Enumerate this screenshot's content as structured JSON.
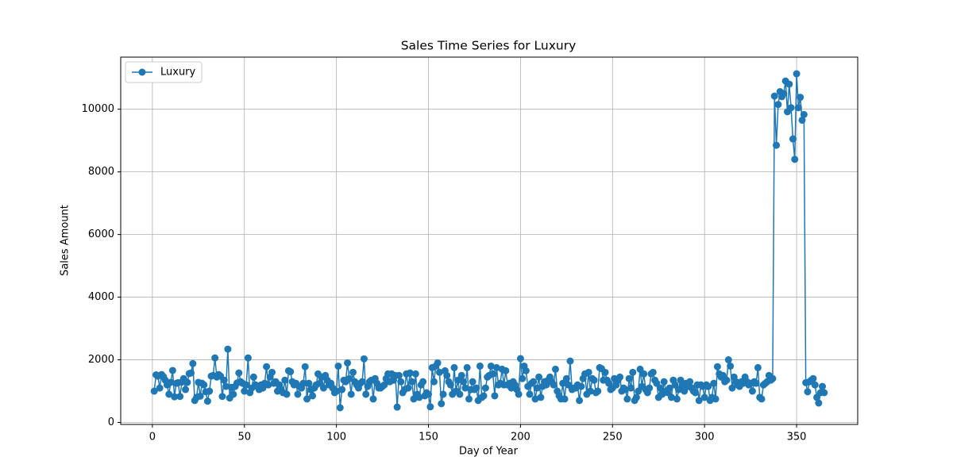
{
  "chart_data": {
    "type": "line",
    "title": "Sales Time Series for Luxury",
    "x_label": "Day of Year",
    "y_label": "Sales Amount",
    "x": [
      1,
      2,
      3,
      4,
      5,
      6,
      7,
      8,
      9,
      10,
      11,
      12,
      13,
      14,
      15,
      16,
      17,
      18,
      19,
      20,
      21,
      22,
      23,
      24,
      25,
      26,
      27,
      28,
      29,
      30,
      31,
      32,
      33,
      34,
      35,
      36,
      37,
      38,
      39,
      40,
      41,
      42,
      43,
      44,
      45,
      46,
      47,
      48,
      49,
      50,
      51,
      52,
      53,
      54,
      55,
      56,
      57,
      58,
      59,
      60,
      61,
      62,
      63,
      64,
      65,
      66,
      67,
      68,
      69,
      70,
      71,
      72,
      73,
      74,
      75,
      76,
      77,
      78,
      79,
      80,
      81,
      82,
      83,
      84,
      85,
      86,
      87,
      88,
      89,
      90,
      91,
      92,
      93,
      94,
      95,
      96,
      97,
      98,
      99,
      100,
      101,
      102,
      103,
      104,
      105,
      106,
      107,
      108,
      109,
      110,
      111,
      112,
      113,
      114,
      115,
      116,
      117,
      118,
      119,
      120,
      121,
      122,
      123,
      124,
      125,
      126,
      127,
      128,
      129,
      130,
      131,
      132,
      133,
      134,
      135,
      136,
      137,
      138,
      139,
      140,
      141,
      142,
      143,
      144,
      145,
      146,
      147,
      148,
      149,
      150,
      151,
      152,
      153,
      154,
      155,
      156,
      157,
      158,
      159,
      160,
      161,
      162,
      163,
      164,
      165,
      166,
      167,
      168,
      169,
      170,
      171,
      172,
      173,
      174,
      175,
      176,
      177,
      178,
      179,
      180,
      181,
      182,
      183,
      184,
      185,
      186,
      187,
      188,
      189,
      190,
      191,
      192,
      193,
      194,
      195,
      196,
      197,
      198,
      199,
      200,
      201,
      202,
      203,
      204,
      205,
      206,
      207,
      208,
      209,
      210,
      211,
      212,
      213,
      214,
      215,
      216,
      217,
      218,
      219,
      220,
      221,
      222,
      223,
      224,
      225,
      226,
      227,
      228,
      229,
      230,
      231,
      232,
      233,
      234,
      235,
      236,
      237,
      238,
      239,
      240,
      241,
      242,
      243,
      244,
      245,
      246,
      247,
      248,
      249,
      250,
      251,
      252,
      253,
      254,
      255,
      256,
      257,
      258,
      259,
      260,
      261,
      262,
      263,
      264,
      265,
      266,
      267,
      268,
      269,
      270,
      271,
      272,
      273,
      274,
      275,
      276,
      277,
      278,
      279,
      280,
      281,
      282,
      283,
      284,
      285,
      286,
      287,
      288,
      289,
      290,
      291,
      292,
      293,
      294,
      295,
      296,
      297,
      298,
      299,
      300,
      301,
      302,
      303,
      304,
      305,
      306,
      307,
      308,
      309,
      310,
      311,
      312,
      313,
      314,
      315,
      316,
      317,
      318,
      319,
      320,
      321,
      322,
      323,
      324,
      325,
      326,
      327,
      328,
      329,
      330,
      331,
      332,
      333,
      334,
      335,
      336,
      337,
      338,
      339,
      340,
      341,
      342,
      343,
      344,
      345,
      346,
      347,
      348,
      349,
      350,
      351,
      352,
      353,
      354,
      355,
      356,
      357,
      358,
      359,
      360,
      361,
      362,
      363,
      364,
      365
    ],
    "series": [
      {
        "name": "Luxury",
        "color": "#1f77b4",
        "values": [
          1000,
          1520,
          1480,
          1100,
          1530,
          1460,
          1350,
          1200,
          900,
          1280,
          1660,
          820,
          1250,
          1270,
          830,
          1290,
          1400,
          1050,
          1280,
          1560,
          1580,
          1880,
          700,
          800,
          1280,
          840,
          1250,
          1200,
          980,
          680,
          1000,
          1480,
          1500,
          2060,
          1450,
          1530,
          1480,
          830,
          1350,
          1150,
          2340,
          780,
          1120,
          900,
          1150,
          1260,
          1580,
          1300,
          1250,
          1000,
          1200,
          2060,
          950,
          1100,
          1450,
          1200,
          1150,
          1050,
          1200,
          1100,
          1250,
          1780,
          1200,
          1450,
          1600,
          1250,
          1300,
          1000,
          1200,
          1050,
          950,
          1350,
          900,
          1650,
          1620,
          1300,
          1200,
          1250,
          900,
          1150,
          1100,
          1250,
          1780,
          750,
          1250,
          1050,
          850,
          1100,
          1200,
          1550,
          1250,
          1450,
          1100,
          1500,
          1350,
          1200,
          1250,
          1100,
          950,
          1000,
          1800,
          470,
          1050,
          1350,
          1300,
          1900,
          1400,
          900,
          1600,
          1300,
          1200,
          1100,
          1250,
          1300,
          2030,
          900,
          1150,
          1300,
          1350,
          750,
          1400,
          1250,
          1100,
          1100,
          1150,
          1200,
          1400,
          1550,
          1300,
          1550,
          1350,
          1500,
          490,
          1500,
          1300,
          950,
          1050,
          1550,
          1100,
          1580,
          1300,
          750,
          1550,
          900,
          800,
          1200,
          1300,
          850,
          950,
          900,
          500,
          1750,
          1300,
          1800,
          1900,
          1600,
          600,
          900,
          1650,
          1500,
          1300,
          1200,
          900,
          1750,
          1000,
          1350,
          900,
          1500,
          1300,
          1100,
          1750,
          750,
          1050,
          1300,
          1050,
          1100,
          700,
          1800,
          800,
          850,
          1100,
          1450,
          1500,
          1800,
          1550,
          850,
          1750,
          1200,
          1250,
          1700,
          1200,
          1650,
          1200,
          1250,
          1100,
          1300,
          1200,
          1050,
          900,
          2040,
          1400,
          1800,
          1650,
          1150,
          900,
          1250,
          1300,
          750,
          1100,
          1450,
          800,
          1150,
          1300,
          1200,
          1350,
          1450,
          1300,
          1200,
          1700,
          1000,
          850,
          750,
          1250,
          750,
          1400,
          1200,
          1960,
          1050,
          1100,
          1100,
          1200,
          700,
          1150,
          1400,
          1550,
          900,
          1600,
          1000,
          1400,
          1350,
          950,
          1000,
          1750,
          1720,
          1350,
          1600,
          1350,
          1250,
          1050,
          1100,
          1400,
          1200,
          1350,
          1450,
          1000,
          1100,
          1050,
          750,
          1400,
          1100,
          1600,
          700,
          800,
          1000,
          1700,
          1150,
          1550,
          1050,
          950,
          1100,
          1550,
          1600,
          1350,
          1250,
          800,
          1100,
          900,
          1300,
          1000,
          950,
          1100,
          800,
          1350,
          1200,
          750,
          1050,
          1350,
          1200,
          1000,
          1250,
          1150,
          1300,
          1100,
          1000,
          950,
          1200,
          700,
          1200,
          1150,
          800,
          1200,
          1150,
          700,
          800,
          1250,
          750,
          1780,
          1550,
          1450,
          1500,
          1300,
          1350,
          2000,
          1800,
          1100,
          1450,
          1300,
          1200,
          1150,
          1300,
          1250,
          1450,
          1300,
          1200,
          1250,
          1000,
          1300,
          1250,
          1750,
          800,
          750,
          1200,
          1250,
          1300,
          1500,
          1350,
          1400,
          10420,
          8850,
          10150,
          10560,
          10400,
          10500,
          10900,
          9920,
          10800,
          10050,
          9050,
          8400,
          11130,
          10050,
          10380,
          9650,
          9830,
          1270,
          980,
          1300,
          1350,
          1400,
          1200,
          800,
          620,
          950,
          1150,
          950
        ]
      }
    ],
    "xlim": [
      -17.2,
      383.2
    ],
    "ylim": [
      -63,
      11663
    ],
    "xticks": [
      0,
      50,
      100,
      150,
      200,
      250,
      300,
      350
    ],
    "yticks": [
      0,
      2000,
      4000,
      6000,
      8000,
      10000
    ],
    "grid": true,
    "legend": "upper-left"
  }
}
